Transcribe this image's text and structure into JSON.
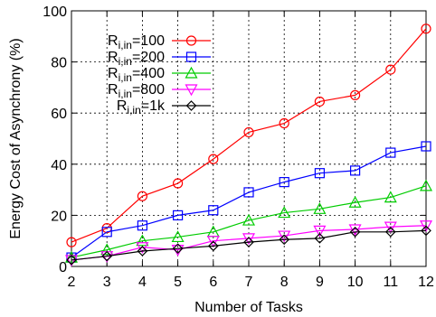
{
  "chart_data": {
    "type": "line",
    "title": "",
    "xlabel": "Number of Tasks",
    "ylabel": "Energy Cost of Asynchrony (%)",
    "x": [
      2,
      3,
      4,
      5,
      6,
      7,
      8,
      9,
      10,
      11,
      12
    ],
    "xlim": [
      2,
      12
    ],
    "ylim": [
      0,
      100
    ],
    "yticks": [
      0,
      20,
      40,
      60,
      80,
      100
    ],
    "grid": true,
    "legend_position": "top-left",
    "series": [
      {
        "name": "R_i,in=100",
        "label_main": "R",
        "label_sub": "i,in",
        "label_rest": "=100",
        "color": "#ff0000",
        "marker": "circle",
        "values": [
          9.5,
          15,
          27.5,
          32.5,
          42,
          52.5,
          56,
          64.5,
          67,
          77,
          93
        ]
      },
      {
        "name": "R_i,in=200",
        "label_main": "R",
        "label_sub": "i,in",
        "label_rest": "=200",
        "color": "#0000ff",
        "marker": "square",
        "values": [
          3.5,
          13.5,
          16,
          20,
          22,
          29,
          33,
          36.5,
          37.5,
          44.5,
          47
        ]
      },
      {
        "name": "R_i,in=400",
        "label_main": "R",
        "label_sub": "i,in",
        "label_rest": "=400",
        "color": "#00cc00",
        "marker": "triangle-up",
        "values": [
          3.5,
          6.5,
          10,
          11.5,
          13.5,
          18,
          21,
          22.5,
          25,
          27,
          31.5
        ]
      },
      {
        "name": "R_i,in=800",
        "label_main": "R",
        "label_sub": "i,in",
        "label_rest": "=800",
        "color": "#ff00ff",
        "marker": "triangle-down",
        "values": [
          2.5,
          4,
          7.5,
          6.5,
          10,
          11,
          12,
          14,
          14.5,
          15.5,
          16
        ]
      },
      {
        "name": "R_i,in=1k",
        "label_main": "R",
        "label_sub": "i,in",
        "label_rest": "=1k",
        "color": "#000000",
        "marker": "diamond",
        "values": [
          2.5,
          4,
          6,
          7,
          8,
          9.5,
          10.5,
          11,
          13.5,
          13.5,
          14
        ]
      }
    ]
  }
}
